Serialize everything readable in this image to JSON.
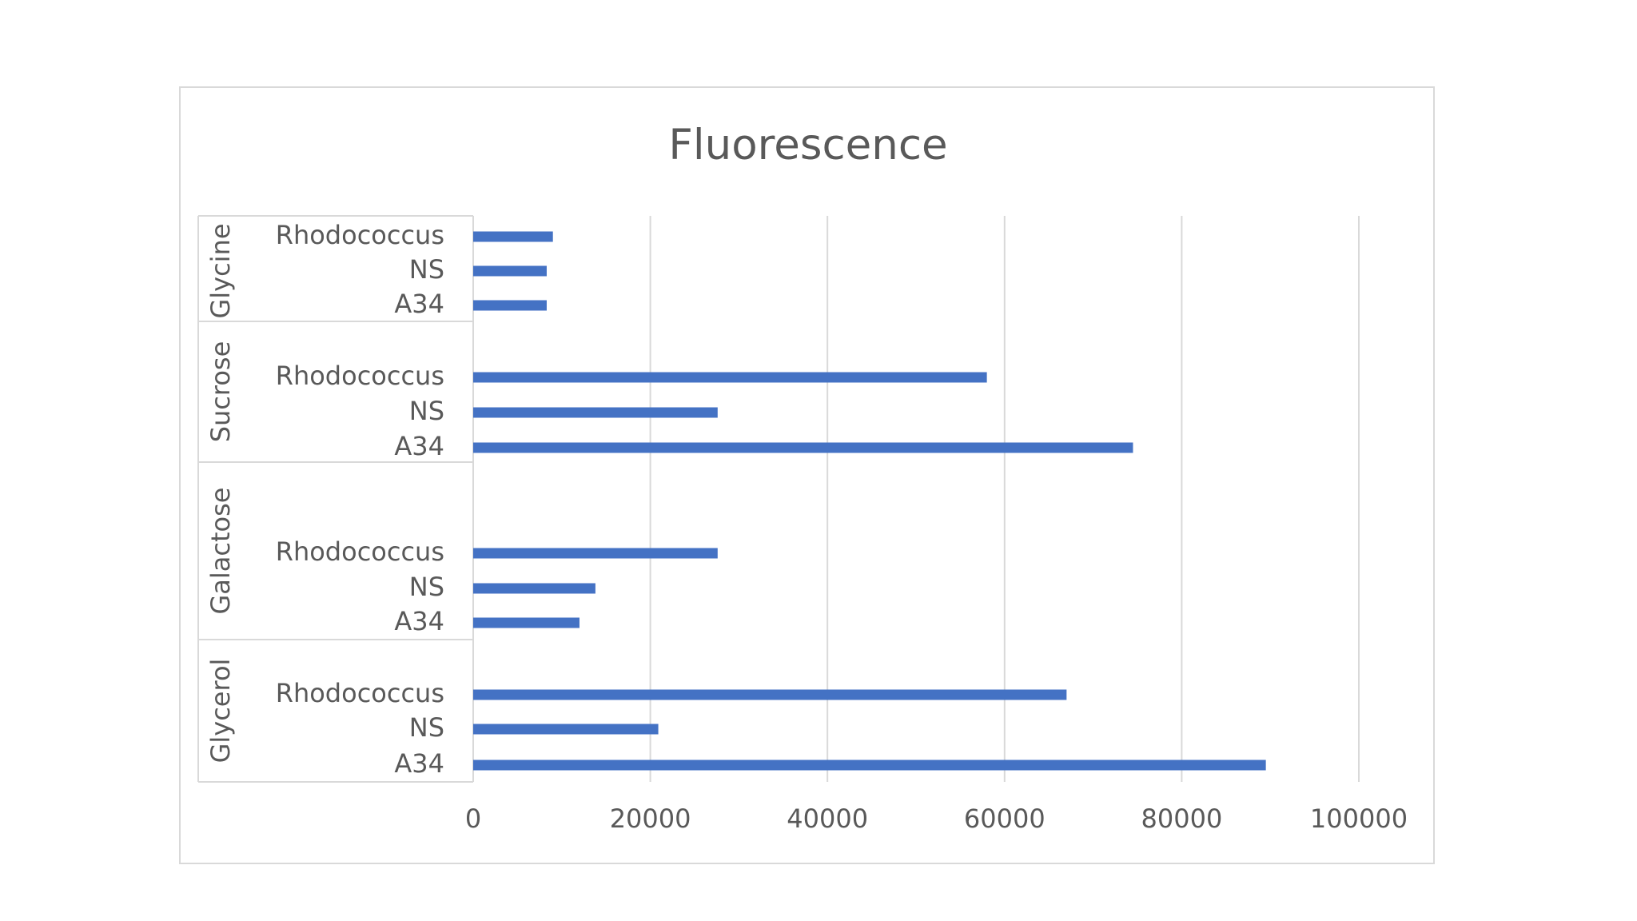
{
  "chart_data": {
    "type": "bar",
    "orientation": "horizontal",
    "title": "Fluorescence",
    "xlabel": "",
    "ylabel": "",
    "xlim": [
      0,
      100000
    ],
    "x_ticks": [
      "0",
      "20000",
      "40000",
      "60000",
      "80000",
      "100000"
    ],
    "grid": "vertical",
    "legend": "none",
    "bar_color": "#4472c4",
    "groups": [
      {
        "name": "Glycine",
        "categories": [
          "Rhodococcus",
          "NS",
          "A34"
        ],
        "values": [
          9000,
          8300,
          8300
        ]
      },
      {
        "name": "Sucrose",
        "categories": [
          "Rhodococcus",
          "NS",
          "A34"
        ],
        "values": [
          58000,
          27600,
          74500
        ]
      },
      {
        "name": "Galactose",
        "categories": [
          "Rhodococcus",
          "NS",
          "A34"
        ],
        "values": [
          27600,
          13800,
          12000
        ]
      },
      {
        "name": "Glycerol",
        "categories": [
          "Rhodococcus",
          "NS",
          "A34"
        ],
        "values": [
          67000,
          20900,
          89500
        ]
      }
    ]
  }
}
